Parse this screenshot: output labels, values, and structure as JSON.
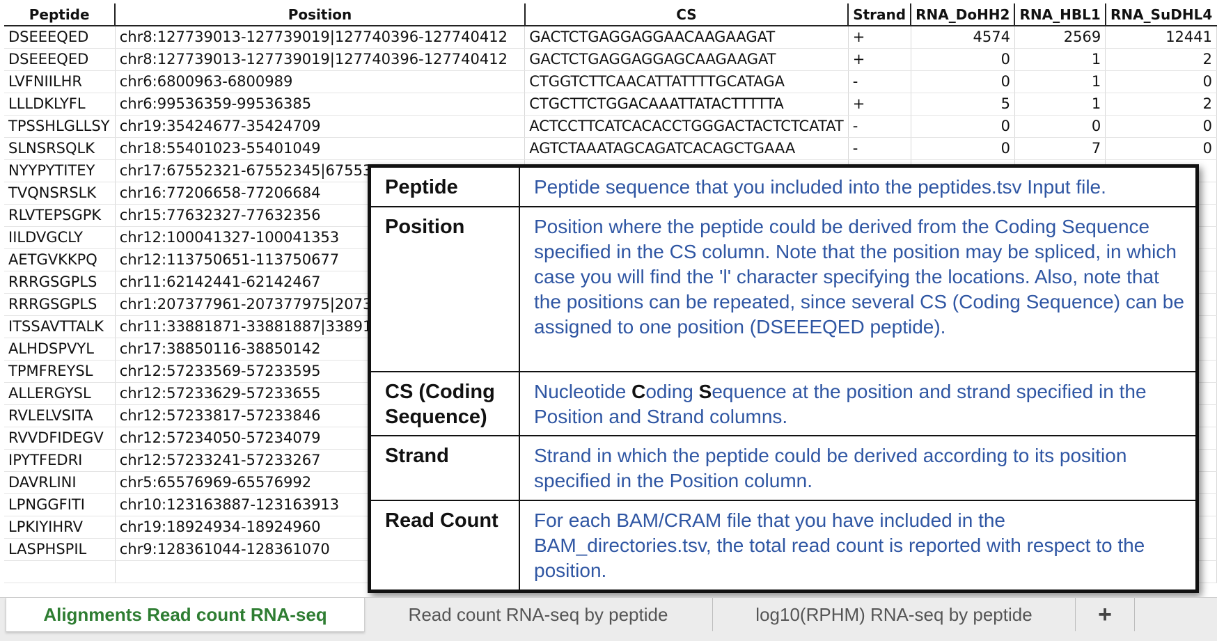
{
  "sheet": {
    "headers": [
      "Peptide",
      "Position",
      "CS",
      "Strand",
      "RNA_DoHH2",
      "RNA_HBL1",
      "RNA_SuDHL4"
    ],
    "rows": [
      {
        "peptide": "DSEEEQED",
        "position": "chr8:127739013-127739019|127740396-127740412",
        "cs": "GACTCTGAGGAGGAACAAGAAGAT",
        "strand": "+",
        "r1": "4574",
        "r2": "2569",
        "r3": "12441"
      },
      {
        "peptide": "DSEEEQED",
        "position": "chr8:127739013-127739019|127740396-127740412",
        "cs": "GACTCTGAGGAGGAGCAAGAAGAT",
        "strand": "+",
        "r1": "0",
        "r2": "1",
        "r3": "2"
      },
      {
        "peptide": "LVFNIILHR",
        "position": "chr6:6800963-6800989",
        "cs": "CTGGTCTTCAACATTATTTTGCATAGA",
        "strand": "-",
        "r1": "0",
        "r2": "1",
        "r3": "0"
      },
      {
        "peptide": "LLLDKLYFL",
        "position": "chr6:99536359-99536385",
        "cs": "CTGCTTCTGGACAAATTATACTTTTTA",
        "strand": "+",
        "r1": "5",
        "r2": "1",
        "r3": "2"
      },
      {
        "peptide": "TPSSHLGLLSY",
        "position": "chr19:35424677-35424709",
        "cs": "ACTCCTTCATCACACCTGGGACTACTCTCATAT",
        "strand": "-",
        "r1": "0",
        "r2": "0",
        "r3": "0"
      },
      {
        "peptide": "SLNSRSQLK",
        "position": "chr18:55401023-55401049",
        "cs": "AGTCTAAATAGCAGATCACAGCTGAAA",
        "strand": "-",
        "r1": "0",
        "r2": "7",
        "r3": "0"
      },
      {
        "peptide": "NYYPYTITEY",
        "position": "chr17:67552321-67552345|67553",
        "cs": "",
        "strand": "",
        "r1": "",
        "r2": "",
        "r3": ""
      },
      {
        "peptide": "TVQNSRSLK",
        "position": "chr16:77206658-77206684",
        "cs": "",
        "strand": "",
        "r1": "",
        "r2": "",
        "r3": ""
      },
      {
        "peptide": "RLVTEPSGPK",
        "position": "chr15:77632327-77632356",
        "cs": "",
        "strand": "",
        "r1": "",
        "r2": "",
        "r3": ""
      },
      {
        "peptide": "IILDVGCLY",
        "position": "chr12:100041327-100041353",
        "cs": "",
        "strand": "",
        "r1": "",
        "r2": "",
        "r3": ""
      },
      {
        "peptide": "AETGVKKPQ",
        "position": "chr12:113750651-113750677",
        "cs": "",
        "strand": "",
        "r1": "",
        "r2": "",
        "r3": ""
      },
      {
        "peptide": "RRRGSGPLS",
        "position": "chr11:62142441-62142467",
        "cs": "",
        "strand": "",
        "r1": "",
        "r2": "",
        "r3": ""
      },
      {
        "peptide": "RRRGSGPLS",
        "position": "chr1:207377961-207377975|2073",
        "cs": "",
        "strand": "",
        "r1": "",
        "r2": "",
        "r3": ""
      },
      {
        "peptide": "ITSSAVTTALK",
        "position": "chr11:33881871-33881887|33891",
        "cs": "",
        "strand": "",
        "r1": "",
        "r2": "",
        "r3": ""
      },
      {
        "peptide": "ALHDSPVYL",
        "position": "chr17:38850116-38850142",
        "cs": "",
        "strand": "",
        "r1": "",
        "r2": "",
        "r3": ""
      },
      {
        "peptide": "TPMFREYSL",
        "position": "chr12:57233569-57233595",
        "cs": "",
        "strand": "",
        "r1": "",
        "r2": "",
        "r3": ""
      },
      {
        "peptide": "ALLERGYSL",
        "position": "chr12:57233629-57233655",
        "cs": "",
        "strand": "",
        "r1": "",
        "r2": "",
        "r3": ""
      },
      {
        "peptide": "RVLELVSITA",
        "position": "chr12:57233817-57233846",
        "cs": "",
        "strand": "",
        "r1": "",
        "r2": "",
        "r3": ""
      },
      {
        "peptide": "RVVDFIDEGV",
        "position": "chr12:57234050-57234079",
        "cs": "",
        "strand": "",
        "r1": "",
        "r2": "",
        "r3": ""
      },
      {
        "peptide": "IPYTFEDRI",
        "position": "chr12:57233241-57233267",
        "cs": "",
        "strand": "",
        "r1": "",
        "r2": "",
        "r3": ""
      },
      {
        "peptide": "DAVRLINI",
        "position": "chr5:65576969-65576992",
        "cs": "",
        "strand": "",
        "r1": "",
        "r2": "",
        "r3": ""
      },
      {
        "peptide": "LPNGGFITI",
        "position": "chr10:123163887-123163913",
        "cs": "",
        "strand": "",
        "r1": "",
        "r2": "",
        "r3": ""
      },
      {
        "peptide": "LPKIYIHRV",
        "position": "chr19:18924934-18924960",
        "cs": "",
        "strand": "",
        "r1": "",
        "r2": "",
        "r3": ""
      },
      {
        "peptide": "LASPHSPIL",
        "position": "chr9:128361044-128361070",
        "cs": "",
        "strand": "",
        "r1": "",
        "r2": "",
        "r3": ""
      }
    ]
  },
  "legend": {
    "rows": [
      {
        "term": "Peptide",
        "def": "Peptide sequence that you included into the peptides.tsv Input file."
      },
      {
        "term": "Position",
        "def": "Position where the peptide could be derived from the Coding Sequence specified in the CS column. Note that the position may be spliced, in which case you will find the 'l' character specifying the locations. Also, note that the positions can be repeated, since several CS (Coding Sequence) can be assigned to one position (DSEEEQED peptide)."
      },
      {
        "term": "CS (Coding Sequence)",
        "def_parts": [
          "Nucleotide ",
          "C",
          "oding ",
          "S",
          "equence at the position and strand specified in the Position and Strand columns."
        ]
      },
      {
        "term": "Strand",
        "def": "Strand in which the peptide could be derived according to its position specified in the Position column."
      },
      {
        "term": "Read Count",
        "def": "For each BAM/CRAM file that you have included in the BAM_directories.tsv, the total read count is reported with respect to the position."
      }
    ]
  },
  "tabs": {
    "items": [
      "Alignments Read count RNA-seq",
      "Read count RNA-seq by peptide",
      "log10(RPHM) RNA-seq by peptide"
    ],
    "add_label": "+",
    "active_color": "#2e7d32"
  }
}
